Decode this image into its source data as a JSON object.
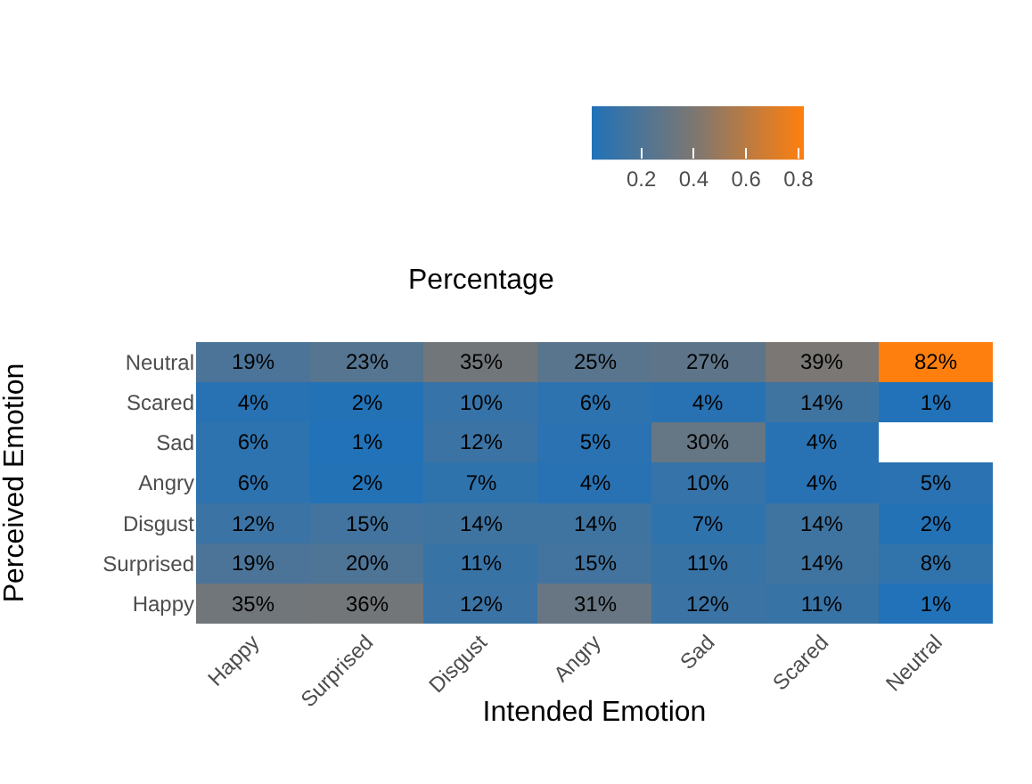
{
  "chart_data": {
    "type": "heatmap",
    "xlabel": "Intended Emotion",
    "ylabel": "Perceived Emotion",
    "clabel": "Percentage",
    "categories": [
      "Happy",
      "Surprised",
      "Disgust",
      "Angry",
      "Sad",
      "Scared",
      "Neutral"
    ],
    "y_categories": [
      "Neutral",
      "Scared",
      "Sad",
      "Angry",
      "Disgust",
      "Surprised",
      "Happy"
    ],
    "cells": [
      [
        0.19,
        0.23,
        0.35,
        0.25,
        0.27,
        0.39,
        0.82
      ],
      [
        0.04,
        0.02,
        0.1,
        0.06,
        0.04,
        0.14,
        0.01
      ],
      [
        0.06,
        0.01,
        0.12,
        0.05,
        0.3,
        0.04,
        null
      ],
      [
        0.06,
        0.02,
        0.07,
        0.04,
        0.1,
        0.04,
        0.05
      ],
      [
        0.12,
        0.15,
        0.14,
        0.14,
        0.07,
        0.14,
        0.02
      ],
      [
        0.19,
        0.2,
        0.11,
        0.15,
        0.11,
        0.14,
        0.08
      ],
      [
        0.35,
        0.36,
        0.12,
        0.31,
        0.12,
        0.11,
        0.01
      ]
    ],
    "cell_labels": [
      [
        "19%",
        "23%",
        "35%",
        "25%",
        "27%",
        "39%",
        "82%"
      ],
      [
        "4%",
        "2%",
        "10%",
        "6%",
        "4%",
        "14%",
        "1%"
      ],
      [
        "6%",
        "1%",
        "12%",
        "5%",
        "30%",
        "4%",
        null
      ],
      [
        "6%",
        "2%",
        "7%",
        "4%",
        "10%",
        "4%",
        "5%"
      ],
      [
        "12%",
        "15%",
        "14%",
        "14%",
        "7%",
        "14%",
        "2%"
      ],
      [
        "19%",
        "20%",
        "11%",
        "15%",
        "11%",
        "14%",
        "8%"
      ],
      [
        "35%",
        "36%",
        "12%",
        "31%",
        "12%",
        "11%",
        "1%"
      ]
    ],
    "clim": [
      0.01,
      0.82
    ],
    "cticks": [
      0.2,
      0.4,
      0.6,
      0.8
    ]
  }
}
